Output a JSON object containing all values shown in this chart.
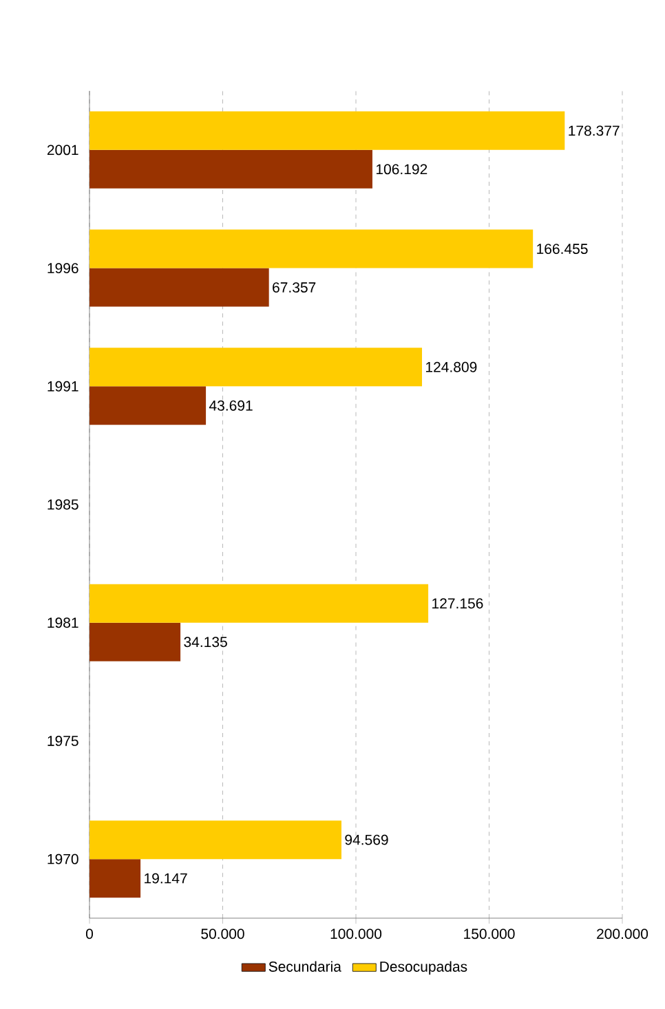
{
  "chart_data": {
    "type": "bar",
    "orientation": "horizontal",
    "categories": [
      "2001",
      "1996",
      "1991",
      "1985",
      "1981",
      "1975",
      "1970"
    ],
    "series": [
      {
        "name": "Secundaria",
        "color": "#993300",
        "values": [
          106192,
          67357,
          43691,
          null,
          34135,
          null,
          19147
        ],
        "value_labels": [
          "106.192",
          "67.357",
          "43.691",
          null,
          "34.135",
          null,
          "19.147"
        ]
      },
      {
        "name": "Desocupadas",
        "color": "#ffcc00",
        "values": [
          178377,
          166455,
          124809,
          null,
          127156,
          null,
          94569
        ],
        "value_labels": [
          "178.377",
          "166.455",
          "124.809",
          null,
          "127.156",
          null,
          "94.569"
        ]
      }
    ],
    "xlim": [
      0,
      200000
    ],
    "xticks": [
      0,
      {
        "value": 50000,
        "label": "50.000"
      },
      {
        "value": 100000,
        "label": "100.000"
      },
      {
        "value": 150000,
        "label": "150.000"
      },
      {
        "value": 200000,
        "label": "200.000"
      }
    ],
    "grid": "x",
    "legend": "bottom"
  }
}
